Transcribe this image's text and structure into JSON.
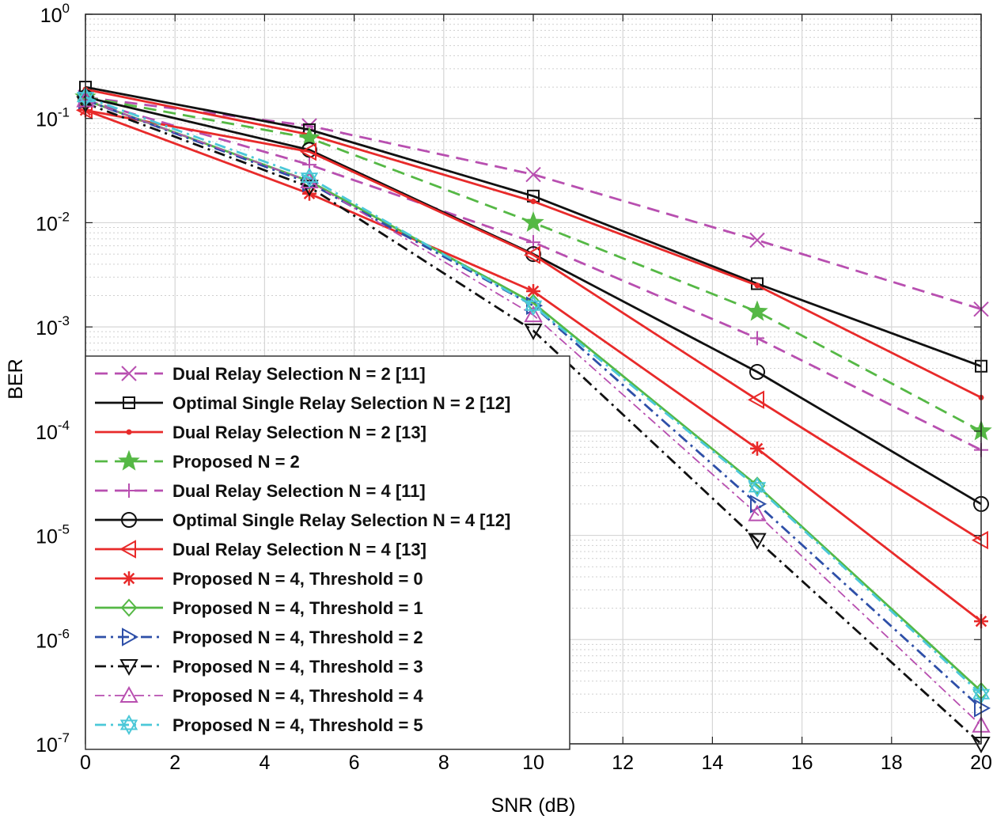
{
  "chart_data": {
    "type": "line",
    "xlabel": "SNR (dB)",
    "ylabel": "BER",
    "xlim": [
      0,
      20
    ],
    "ylim": [
      1e-07,
      1
    ],
    "yscale": "log",
    "grid": true,
    "legend_location": "bottom-left",
    "x": [
      0,
      5,
      10,
      15,
      20
    ],
    "x_ticks": [
      "0",
      "2",
      "4",
      "6",
      "8",
      "10",
      "12",
      "14",
      "16",
      "18",
      "20"
    ],
    "y_ticks": [
      {
        "base": "10",
        "exp": "-7"
      },
      {
        "base": "10",
        "exp": "-6"
      },
      {
        "base": "10",
        "exp": "-5"
      },
      {
        "base": "10",
        "exp": "-4"
      },
      {
        "base": "10",
        "exp": "-3"
      },
      {
        "base": "10",
        "exp": "-2"
      },
      {
        "base": "10",
        "exp": "-1"
      },
      {
        "base": "10",
        "exp": "0"
      }
    ],
    "series": [
      {
        "name": "Dual Relay Selection N = 2 [11]",
        "values": [
          0.16,
          0.085,
          0.029,
          0.0068,
          0.00148
        ],
        "color": "#b84fb0",
        "dash": "dash",
        "marker": "x"
      },
      {
        "name": "Optimal Single Relay Selection N = 2 [12]",
        "values": [
          0.2,
          0.078,
          0.018,
          0.0026,
          0.00042
        ],
        "color": "#111111",
        "dash": "solid",
        "marker": "square"
      },
      {
        "name": "Dual Relay Selection N = 2 [13]",
        "values": [
          0.19,
          0.07,
          0.016,
          0.0025,
          0.00021
        ],
        "color": "#e82a2a",
        "dash": "solid",
        "marker": "point"
      },
      {
        "name": "Proposed N = 2",
        "values": [
          0.16,
          0.065,
          0.01,
          0.0014,
          0.0001
        ],
        "color": "#55b845",
        "dash": "dash",
        "marker": "star5"
      },
      {
        "name": "Dual Relay Selection N = 4 [11]",
        "values": [
          0.15,
          0.036,
          0.0065,
          0.00078,
          6.6e-05
        ],
        "color": "#b84fb0",
        "dash": "dash",
        "marker": "plus"
      },
      {
        "name": "Optimal Single Relay Selection N = 4 [12]",
        "values": [
          0.16,
          0.05,
          0.005,
          0.00037,
          2e-05
        ],
        "color": "#111111",
        "dash": "solid",
        "marker": "circle"
      },
      {
        "name": "Dual Relay Selection N = 4 [13]",
        "values": [
          0.12,
          0.048,
          0.0049,
          0.0002,
          9e-06
        ],
        "color": "#e82a2a",
        "dash": "solid",
        "marker": "triangle-left"
      },
      {
        "name": "Proposed N = 4, Threshold = 0",
        "values": [
          0.12,
          0.019,
          0.0022,
          6.8e-05,
          1.5e-06
        ],
        "color": "#e82a2a",
        "dash": "solid",
        "marker": "asterisk"
      },
      {
        "name": "Proposed N = 4, Threshold = 1",
        "values": [
          0.15,
          0.025,
          0.0017,
          3e-05,
          3.2e-07
        ],
        "color": "#55b845",
        "dash": "solid",
        "marker": "diamond"
      },
      {
        "name": "Proposed N = 4, Threshold = 2",
        "values": [
          0.15,
          0.024,
          0.0016,
          2e-05,
          2.2e-07
        ],
        "color": "#2e4fa8",
        "dash": "dashdot",
        "marker": "triangle-right"
      },
      {
        "name": "Proposed N = 4, Threshold = 3",
        "values": [
          0.14,
          0.022,
          0.00092,
          9e-06,
          1e-07
        ],
        "color": "#111111",
        "dash": "dashdot",
        "marker": "triangle-down"
      },
      {
        "name": "Proposed N = 4, Threshold = 4",
        "values": [
          0.15,
          0.025,
          0.0013,
          1.6e-05,
          1.5e-07
        ],
        "color": "#b84fb0",
        "dash": "dashdot-thin",
        "marker": "triangle-up"
      },
      {
        "name": "Proposed N = 4, Threshold = 5",
        "values": [
          0.16,
          0.027,
          0.0016,
          2.9e-05,
          3e-07
        ],
        "color": "#4bc8d8",
        "dash": "dashdot",
        "marker": "hexagram"
      }
    ]
  }
}
